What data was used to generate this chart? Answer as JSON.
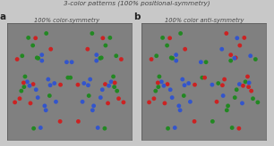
{
  "title": "3-color patterns (100% positional-symmetry)",
  "subtitle_a": "100% color-symmetry",
  "subtitle_b": "100% color anti-symmetry",
  "label_a": "a",
  "label_b": "b",
  "bg_color": "#808080",
  "fig_bg": "#c8c8c8",
  "dot_colors": [
    "#cc2222",
    "#3355cc",
    "#228822"
  ],
  "dot_size": 12,
  "n_half": 36,
  "seed": 7
}
